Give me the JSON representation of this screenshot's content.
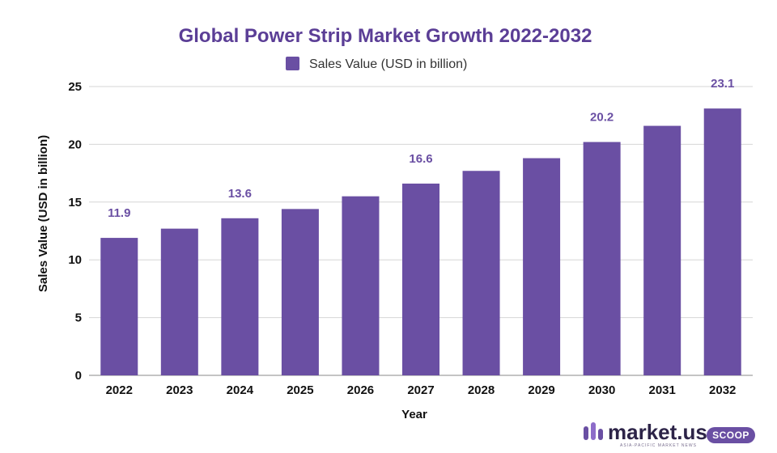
{
  "chart_data": {
    "type": "bar",
    "title": "Global Power Strip Market Growth 2022-2032",
    "xlabel": "Year",
    "ylabel": "Sales Value (USD in billion)",
    "categories": [
      "2022",
      "2023",
      "2024",
      "2025",
      "2026",
      "2027",
      "2028",
      "2029",
      "2030",
      "2031",
      "2032"
    ],
    "series": [
      {
        "name": "Sales Value (USD in billion)",
        "values": [
          11.9,
          12.7,
          13.6,
          14.4,
          15.5,
          16.6,
          17.7,
          18.8,
          20.2,
          21.6,
          23.1
        ],
        "data_labels": [
          "11.9",
          "",
          "13.6",
          "",
          "",
          "16.6",
          "",
          "",
          "20.2",
          "",
          "23.1"
        ]
      }
    ],
    "ylim": [
      0,
      25
    ],
    "yticks": [
      0,
      5,
      10,
      15,
      20,
      25
    ],
    "grid": true,
    "legend_position": "top-center",
    "colors": {
      "bar": "#6a4fa3",
      "title": "#5b3e96",
      "data_label": "#6a4fa3",
      "grid": "#d6d6d6"
    }
  },
  "brand": {
    "name": "market.us",
    "tagline": "ASIA-PACIFIC MARKET NEWS",
    "badge": "SCOOP"
  }
}
